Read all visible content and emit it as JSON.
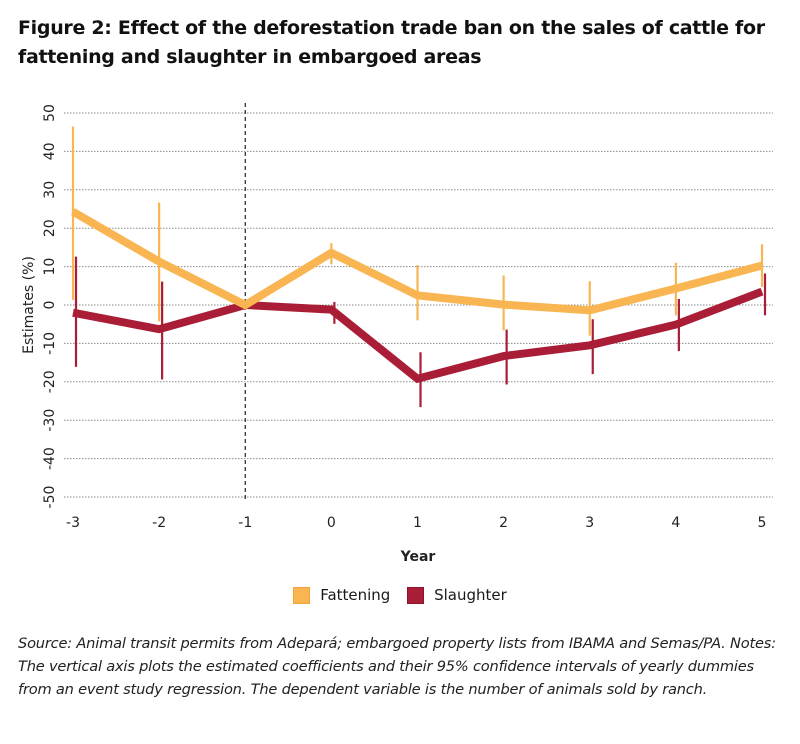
{
  "figure": {
    "title": "Figure 2: Effect of the deforestation trade ban on the sales of cattle for fattening and slaughter in embargoed areas",
    "source_note": "Source: Animal transit permits from Adepará; embargoed property lists from IBAMA and Semas/PA. Notes: The vertical axis plots the estimated coefficients and their 95% confidence intervals of yearly dummies from an event study regression. The dependent variable is the number of animals sold by ranch."
  },
  "chart_data": {
    "type": "line",
    "title": "Figure 2: Effect of the deforestation trade ban on the sales of cattle for fattening and slaughter in embargoed areas",
    "xlabel": "Year",
    "ylabel": "Estimates (%)",
    "x": [
      -3,
      -2,
      -1,
      0,
      1,
      2,
      3,
      4,
      5
    ],
    "x_tick_labels": [
      "-3",
      "-2",
      "-1",
      "0",
      "1",
      "2",
      "3",
      "4",
      "5"
    ],
    "y_ticks": [
      50,
      40,
      30,
      20,
      10,
      0,
      -10,
      -20,
      -30,
      -40,
      -50
    ],
    "y_tick_labels": [
      "50",
      "40",
      "30",
      "20",
      "10",
      "0",
      "-10",
      "-20",
      "-30",
      "-40",
      "-50"
    ],
    "ylim": [
      -50,
      50
    ],
    "xlim": [
      -3,
      5
    ],
    "grid": "horizontal dotted",
    "reference_line": {
      "x": -1,
      "style": "dashed"
    },
    "legend_position": "bottom-center",
    "series": [
      {
        "name": "Fattening",
        "color": "#F9B551",
        "values": [
          24.3,
          11.3,
          0,
          13.6,
          2.5,
          0.1,
          -1.4,
          4.3,
          10.3
        ],
        "ci_lower": [
          1.3,
          -4.3,
          0,
          10.6,
          -4.0,
          -6.6,
          -8.0,
          -2.7,
          4.7
        ],
        "ci_upper": [
          46.5,
          26.7,
          0,
          16.1,
          10.4,
          7.7,
          6.2,
          11.0,
          15.8
        ]
      },
      {
        "name": "Slaughter",
        "color": "#A91E36",
        "values": [
          -2.0,
          -6.3,
          0,
          -1.2,
          -19.2,
          -13.3,
          -10.5,
          -5.1,
          3.5
        ],
        "ci_lower": [
          -16.1,
          -19.4,
          0,
          -4.9,
          -26.6,
          -20.7,
          -18.0,
          -12.0,
          -2.7
        ],
        "ci_upper": [
          12.6,
          6.1,
          0,
          0.8,
          -12.3,
          -6.4,
          -3.7,
          1.6,
          8.2
        ]
      }
    ]
  }
}
